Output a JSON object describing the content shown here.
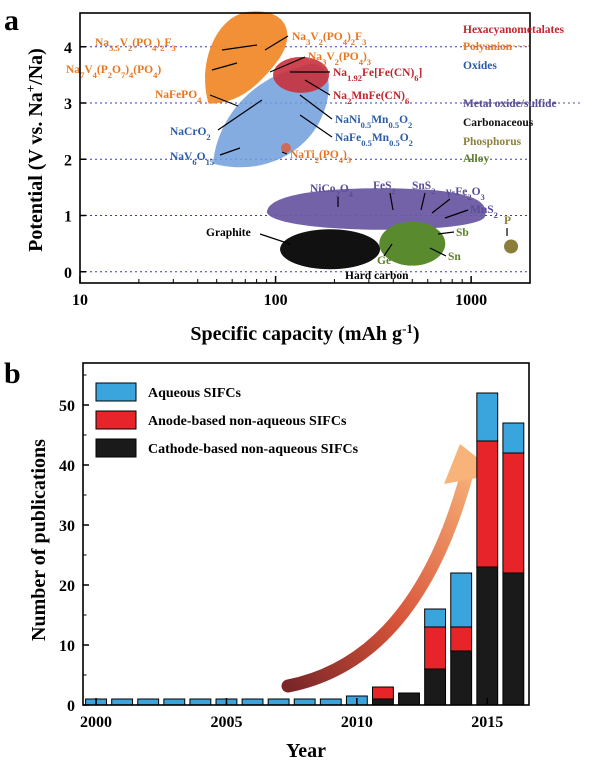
{
  "chart_data": [
    {
      "panel": "a",
      "type": "scatter",
      "xlabel": "Specific capacity (mAh g-1)",
      "ylabel": "Potential (V vs. Na+/Na)",
      "xscale": "log",
      "xlim": [
        10,
        2000
      ],
      "ylim": [
        -0.2,
        4.6
      ],
      "xticks": [
        10,
        100,
        1000
      ],
      "xtick_labels": [
        "10",
        "100",
        "1000"
      ],
      "yticks": [
        0,
        1,
        2,
        3,
        4
      ],
      "ytick_labels": [
        "0",
        "1",
        "2",
        "3",
        "4"
      ],
      "reference_lines_y": [
        0,
        1,
        2,
        3,
        4
      ],
      "legend": [
        {
          "name": "Hexacyanometalates",
          "color": "#c0262d"
        },
        {
          "name": "Polyanion",
          "color": "#e8761e"
        },
        {
          "name": "Oxides",
          "color": "#2c5ca6"
        },
        {
          "name": "Metal oxide/sulfide",
          "color": "#5a4c96"
        },
        {
          "name": "Carbonaceous",
          "color": "#111111"
        },
        {
          "name": "Phosphorus",
          "color": "#8c8240"
        },
        {
          "name": "Alloy",
          "color": "#5e7f2a"
        }
      ],
      "regions": [
        {
          "name": "Polyanion",
          "color": "#f08a2c",
          "center": [
            80,
            3.7
          ]
        },
        {
          "name": "Oxides",
          "color": "#6f9edb",
          "center": [
            120,
            2.9
          ]
        },
        {
          "name": "Hexacyanometalates",
          "color": "#c9313c",
          "center": [
            135,
            3.5
          ]
        },
        {
          "name": "Metal oxide/sulfide",
          "color": "#6b5aa3",
          "center": [
            330,
            1.05
          ]
        },
        {
          "name": "Carbonaceous",
          "color": "#111111",
          "center": [
            190,
            0.4
          ]
        },
        {
          "name": "Alloy",
          "color": "#5a8a2e",
          "center": [
            500,
            0.5
          ]
        },
        {
          "name": "Phosphorus",
          "color": "#8a7f3a",
          "center": [
            1600,
            0.45
          ]
        }
      ],
      "materials": [
        {
          "name": "Na3.5V2(PO4)2F3",
          "category": "Polyanion",
          "x": 45,
          "y": 4.15
        },
        {
          "name": "Na3V2(PO4)2F3",
          "category": "Polyanion",
          "x": 120,
          "y": 4.15
        },
        {
          "name": "Na3V2(PO4)3",
          "category": "Polyanion",
          "x": 117,
          "y": 3.4
        },
        {
          "name": "Na7V4(P2O7)4(PO4)",
          "category": "Polyanion",
          "x": 40,
          "y": 3.9
        },
        {
          "name": "NaFePO4",
          "category": "Polyanion",
          "x": 65,
          "y": 2.9
        },
        {
          "name": "Na1.92Fe[Fe(CN)6]",
          "category": "Hexacyanometalates",
          "x": 160,
          "y": 3.5
        },
        {
          "name": "Na2MnFe(CN)6",
          "category": "Hexacyanometalates",
          "x": 150,
          "y": 3.2
        },
        {
          "name": "NaNi0.5Mn0.5O2",
          "category": "Oxides",
          "x": 150,
          "y": 3.1
        },
        {
          "name": "NaFe0.5Mn0.5O2",
          "category": "Oxides",
          "x": 140,
          "y": 2.8
        },
        {
          "name": "NaCrO2",
          "category": "Oxides",
          "x": 110,
          "y": 3.0
        },
        {
          "name": "NaV6O15",
          "category": "Oxides",
          "x": 70,
          "y": 2.4
        },
        {
          "name": "NaTi2(PO4)3",
          "category": "Polyanion",
          "x": 113,
          "y": 2.2
        },
        {
          "name": "NiCo2O4",
          "category": "Metal oxide/sulfide",
          "x": 210,
          "y": 1.15
        },
        {
          "name": "FeS2",
          "category": "Metal oxide/sulfide",
          "x": 350,
          "y": 1.2
        },
        {
          "name": "SnS2",
          "category": "Metal oxide/sulfide",
          "x": 540,
          "y": 1.25
        },
        {
          "name": "γ-Fe2O3",
          "category": "Metal oxide/sulfide",
          "x": 620,
          "y": 1.15
        },
        {
          "name": "MnS2",
          "category": "Metal oxide/sulfide",
          "x": 700,
          "y": 1.05
        },
        {
          "name": "Graphite",
          "category": "Carbonaceous",
          "x": 110,
          "y": 0.6
        },
        {
          "name": "Hard carbon",
          "category": "Carbonaceous",
          "x": 300,
          "y": 0.1
        },
        {
          "name": "Ge",
          "category": "Alloy",
          "x": 370,
          "y": 0.4
        },
        {
          "name": "Sb",
          "category": "Alloy",
          "x": 620,
          "y": 0.7
        },
        {
          "name": "Sn",
          "category": "Alloy",
          "x": 620,
          "y": 0.4
        },
        {
          "name": "P",
          "category": "Phosphorus",
          "x": 1600,
          "y": 0.45
        }
      ]
    },
    {
      "panel": "b",
      "type": "bar",
      "stacked": true,
      "xlabel": "Year",
      "ylabel": "Number of publications",
      "xlim": [
        1999.5,
        2016.6
      ],
      "ylim": [
        0,
        57
      ],
      "xticks": [
        2000,
        2005,
        2010,
        2015
      ],
      "xtick_labels": [
        "2000",
        "2005",
        "2010",
        "2015"
      ],
      "yticks": [
        0,
        10,
        20,
        30,
        40,
        50
      ],
      "ytick_labels": [
        "0",
        "10",
        "20",
        "30",
        "40",
        "50"
      ],
      "legend_position": "top-left",
      "categories": [
        2000,
        2001,
        2002,
        2003,
        2004,
        2005,
        2006,
        2007,
        2008,
        2009,
        2010,
        2011,
        2012,
        2013,
        2014,
        2015,
        2016
      ],
      "series": [
        {
          "name": "Cathode-based non-aqueous SIFCs",
          "color": "#1a1a1a",
          "values": [
            0,
            0,
            0,
            0,
            0,
            0,
            0,
            0,
            0,
            0,
            0,
            1,
            2,
            6,
            9,
            23,
            22
          ]
        },
        {
          "name": "Anode-based non-aqueous SIFCs",
          "color": "#e8242b",
          "values": [
            0,
            0,
            0,
            0,
            0,
            0,
            0,
            0,
            0,
            0,
            0,
            2,
            0,
            7,
            4,
            21,
            20
          ]
        },
        {
          "name": "Aqueous SIFCs",
          "color": "#3aa4dc",
          "values": [
            1,
            1,
            1,
            1,
            1,
            1,
            1,
            1,
            1,
            1,
            1.5,
            0,
            0,
            3,
            9,
            8,
            5
          ]
        }
      ],
      "legend_order": [
        "Aqueous SIFCs",
        "Anode-based non-aqueous SIFCs",
        "Cathode-based non-aqueous SIFCs"
      ],
      "trend_arrow": "increasing"
    }
  ]
}
